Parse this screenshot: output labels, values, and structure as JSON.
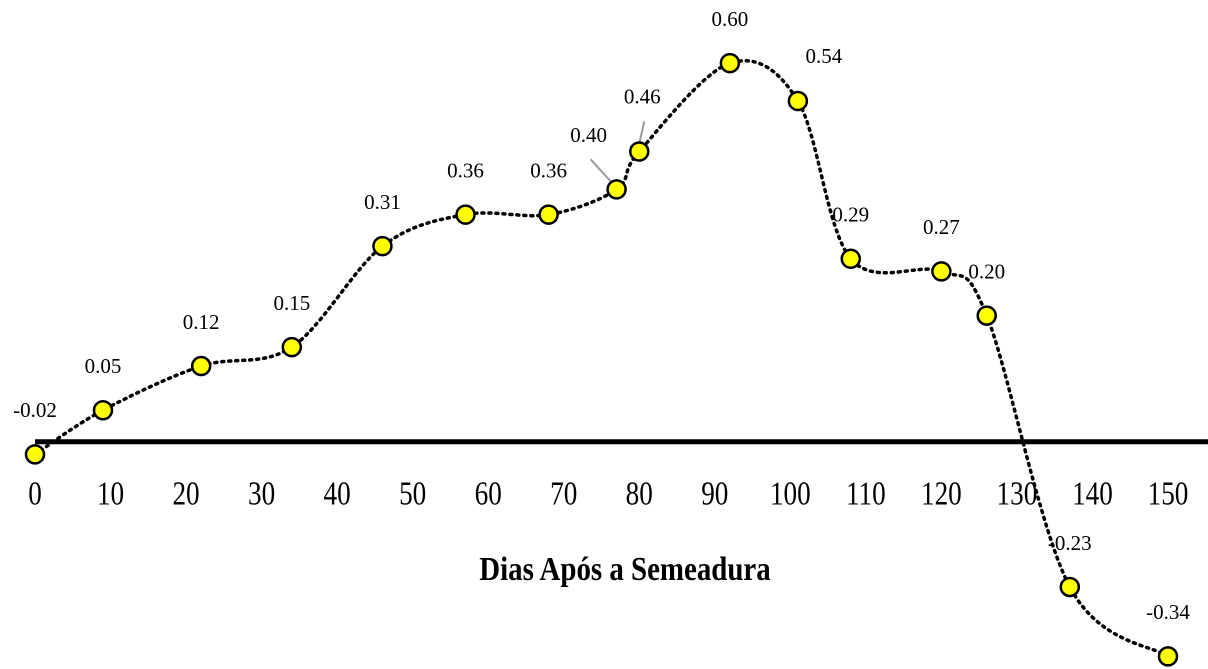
{
  "chart_data": {
    "type": "line",
    "x_label": "Dias Após a Semeadura",
    "x": [
      0,
      9,
      22,
      34,
      46,
      57,
      68,
      77,
      80,
      92,
      101,
      108,
      120,
      126,
      137,
      150
    ],
    "series": [
      {
        "color": "#ffff00",
        "values": [
          -0.02,
          0.05,
          0.12,
          0.15,
          0.31,
          0.36,
          0.36,
          0.4,
          0.46,
          0.6,
          0.54,
          0.29,
          0.27,
          0.2,
          -0.23,
          -0.34
        ],
        "value_labels": [
          "-0.02",
          "0.05",
          "0.12",
          "0.15",
          "0.31",
          "0.36",
          "0.36",
          "0.40",
          "0.46",
          "0.60",
          "0.54",
          "0.29",
          "0.27",
          "0.20",
          "-0.23",
          "-0.34"
        ]
      }
    ],
    "xlim": [
      0,
      150
    ],
    "xticks": [
      0,
      10,
      20,
      30,
      40,
      50,
      60,
      70,
      80,
      90,
      100,
      110,
      120,
      130,
      140,
      150
    ],
    "ylim": [
      -0.36,
      0.7
    ]
  }
}
